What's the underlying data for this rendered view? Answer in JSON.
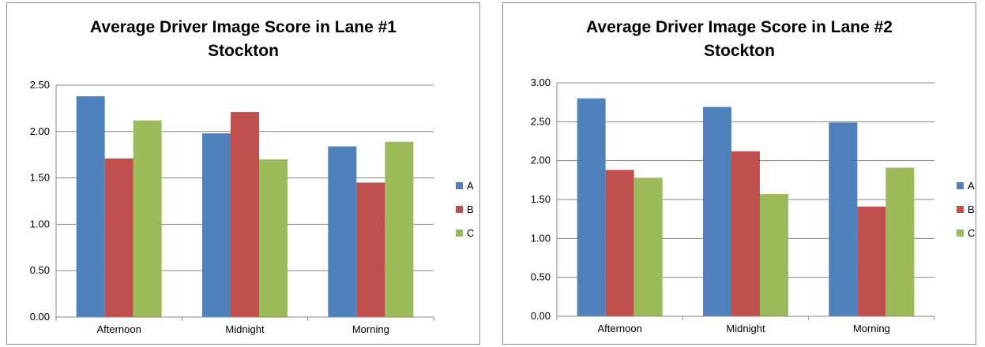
{
  "chart_data": [
    {
      "type": "bar",
      "title": "Average Driver Image Score in Lane #1",
      "subtitle": "Stockton",
      "categories": [
        "Afternoon",
        "Midnight",
        "Morning"
      ],
      "series": [
        {
          "name": "A",
          "color": "#4F81BD",
          "values": [
            2.38,
            1.98,
            1.84
          ]
        },
        {
          "name": "B",
          "color": "#C0504D",
          "values": [
            1.71,
            2.21,
            1.45
          ]
        },
        {
          "name": "C",
          "color": "#9BBB59",
          "values": [
            2.12,
            1.7,
            1.89
          ]
        }
      ],
      "ylim": [
        0,
        2.5
      ],
      "yticks": [
        "0.00",
        "0.50",
        "1.00",
        "1.50",
        "2.00",
        "2.50"
      ],
      "grid": true,
      "legend": "right"
    },
    {
      "type": "bar",
      "title": "Average Driver Image Score in Lane #2",
      "subtitle": "Stockton",
      "categories": [
        "Afternoon",
        "Midnight",
        "Morning"
      ],
      "series": [
        {
          "name": "A",
          "color": "#4F81BD",
          "values": [
            2.8,
            2.69,
            2.49
          ]
        },
        {
          "name": "B",
          "color": "#C0504D",
          "values": [
            1.88,
            2.12,
            1.41
          ]
        },
        {
          "name": "C",
          "color": "#9BBB59",
          "values": [
            1.78,
            1.57,
            1.91
          ]
        }
      ],
      "ylim": [
        0,
        3.0
      ],
      "yticks": [
        "0.00",
        "0.50",
        "1.00",
        "1.50",
        "2.00",
        "2.50",
        "3.00"
      ],
      "grid": true,
      "legend": "right"
    }
  ]
}
